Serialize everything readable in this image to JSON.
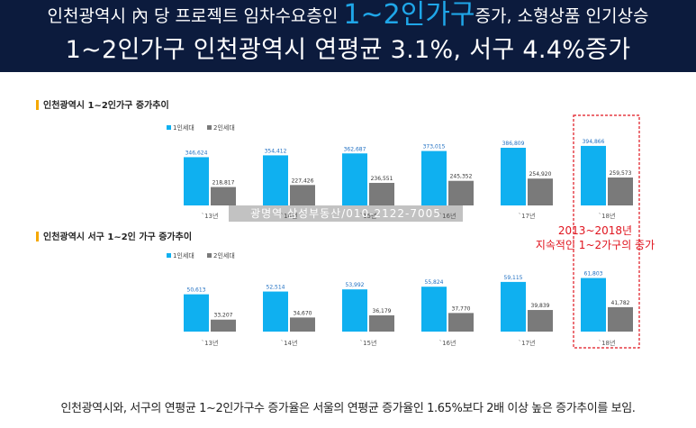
{
  "banner": {
    "line1_pre": "인천광역시 內 당 프로젝트 임차수요층인 ",
    "line1_highlight": "1~2인가구",
    "line1_post": "증가, 소형상품 인기상승",
    "line2": "1~2인가구 인천광역시 연평균 3.1%, 서구 4.4%증가"
  },
  "colors": {
    "series1": "#0fb0f0",
    "series2": "#7a7a7a",
    "highlight": "#e0141e",
    "banner_bg": "#0c1b3d",
    "banner_accent": "#1fa6e8"
  },
  "chart_data": [
    {
      "type": "bar",
      "title": "인천광역시 1~2인가구 증가추이",
      "categories": [
        "`13년",
        "`14년",
        "`15년",
        "`16년",
        "`17년",
        "`18년"
      ],
      "series": [
        {
          "name": "1인세대",
          "values": [
            346624,
            354412,
            362687,
            373015,
            386809,
            394866
          ],
          "labels": [
            "346,624",
            "354,412",
            "362,687",
            "373,015",
            "386,809",
            "394,866"
          ]
        },
        {
          "name": "2인세대",
          "values": [
            218817,
            227426,
            236551,
            245352,
            254920,
            259573
          ],
          "labels": [
            "218,817",
            "227,426",
            "236,551",
            "245,352",
            "254,920",
            "259,573"
          ]
        }
      ],
      "ylim": [
        140000,
        410000
      ],
      "legend": "top-left",
      "grid": false
    },
    {
      "type": "bar",
      "title": "인천광역시 서구 1~2인 가구 증가추이",
      "categories": [
        "`13년",
        "`14년",
        "`15년",
        "`16년",
        "`17년",
        "`18년"
      ],
      "series": [
        {
          "name": "1인세대",
          "values": [
            50613,
            52514,
            53992,
            55824,
            59115,
            61803
          ],
          "labels": [
            "50,613",
            "52,514",
            "53,992",
            "55,824",
            "59,115",
            "61,803"
          ]
        },
        {
          "name": "2인세대",
          "values": [
            33207,
            34670,
            36179,
            37770,
            39839,
            41782
          ],
          "labels": [
            "33,207",
            "34,670",
            "36,179",
            "37,770",
            "39,839",
            "41,782"
          ]
        }
      ],
      "ylim": [
        25000,
        64000
      ],
      "legend": "top-left",
      "grid": false
    }
  ],
  "annotation": {
    "line1": "2013~2018년",
    "line2": "지속적인 1~2가구의 증가"
  },
  "watermark": "광명역 삼성부동산/010-2122-7005",
  "footer": "인천광역시와, 서구의 연평균 1~2인가구수 증가율은 서울의 연평균 증가율인 1.65%보다 2배 이상 높은 증가추이를 보임."
}
